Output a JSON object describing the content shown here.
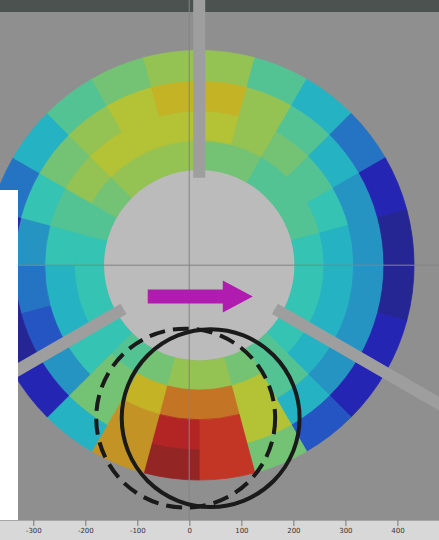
{
  "chart_data": {
    "type": "polar_heatmap",
    "xlim": [
      -365,
      479
    ],
    "xticks": [
      -300,
      -200,
      -100,
      0,
      100,
      200,
      300,
      400
    ],
    "ylim": [
      -490,
      510
    ],
    "tick_labels": "x",
    "center": [
      18,
      0
    ],
    "angles": [
      0,
      15,
      30,
      45,
      60,
      75,
      90,
      105,
      120,
      135,
      150,
      165,
      180,
      195,
      210,
      225,
      240,
      255,
      270,
      285,
      300,
      315,
      330,
      345,
      360
    ],
    "radii": [
      183,
      240,
      297,
      355,
      413
    ],
    "value_range": [
      0,
      1
    ],
    "cells": [
      [
        0.5,
        0.6,
        0.65,
        0.55
      ],
      [
        0.5,
        0.55,
        0.55,
        0.45
      ],
      [
        0.45,
        0.5,
        0.45,
        0.35
      ],
      [
        0.45,
        0.45,
        0.35,
        0.25
      ],
      [
        0.45,
        0.4,
        0.3,
        0.1
      ],
      [
        0.4,
        0.35,
        0.3,
        0.05
      ],
      [
        0.4,
        0.35,
        0.3,
        0.05
      ],
      [
        0.4,
        0.35,
        0.3,
        0.1
      ],
      [
        0.4,
        0.35,
        0.3,
        0.1
      ],
      [
        0.45,
        0.45,
        0.35,
        0.2
      ],
      [
        0.5,
        0.6,
        0.6,
        0.5
      ],
      [
        0.55,
        0.75,
        0.85,
        0.85
      ],
      [
        0.55,
        0.75,
        0.9,
        0.95
      ],
      [
        0.5,
        0.65,
        0.7,
        0.7
      ],
      [
        0.45,
        0.5,
        0.5,
        0.35
      ],
      [
        0.4,
        0.4,
        0.3,
        0.1
      ],
      [
        0.4,
        0.35,
        0.2,
        0.05
      ],
      [
        0.4,
        0.35,
        0.25,
        0.05
      ],
      [
        0.4,
        0.4,
        0.3,
        0.1
      ],
      [
        0.45,
        0.45,
        0.4,
        0.25
      ],
      [
        0.5,
        0.55,
        0.5,
        0.35
      ],
      [
        0.55,
        0.6,
        0.55,
        0.45
      ],
      [
        0.55,
        0.6,
        0.6,
        0.5
      ],
      [
        0.55,
        0.6,
        0.65,
        0.55
      ]
    ],
    "circles": [
      {
        "center": [
          -8,
          -294
        ],
        "radius": 172,
        "line_style": "dashed"
      },
      {
        "center": [
          40,
          -294
        ],
        "radius": 171,
        "line_style": "solid"
      }
    ],
    "arrow": {
      "from": [
        -81,
        -60
      ],
      "to": [
        121,
        -60
      ],
      "color": "#b01cb0"
    }
  }
}
